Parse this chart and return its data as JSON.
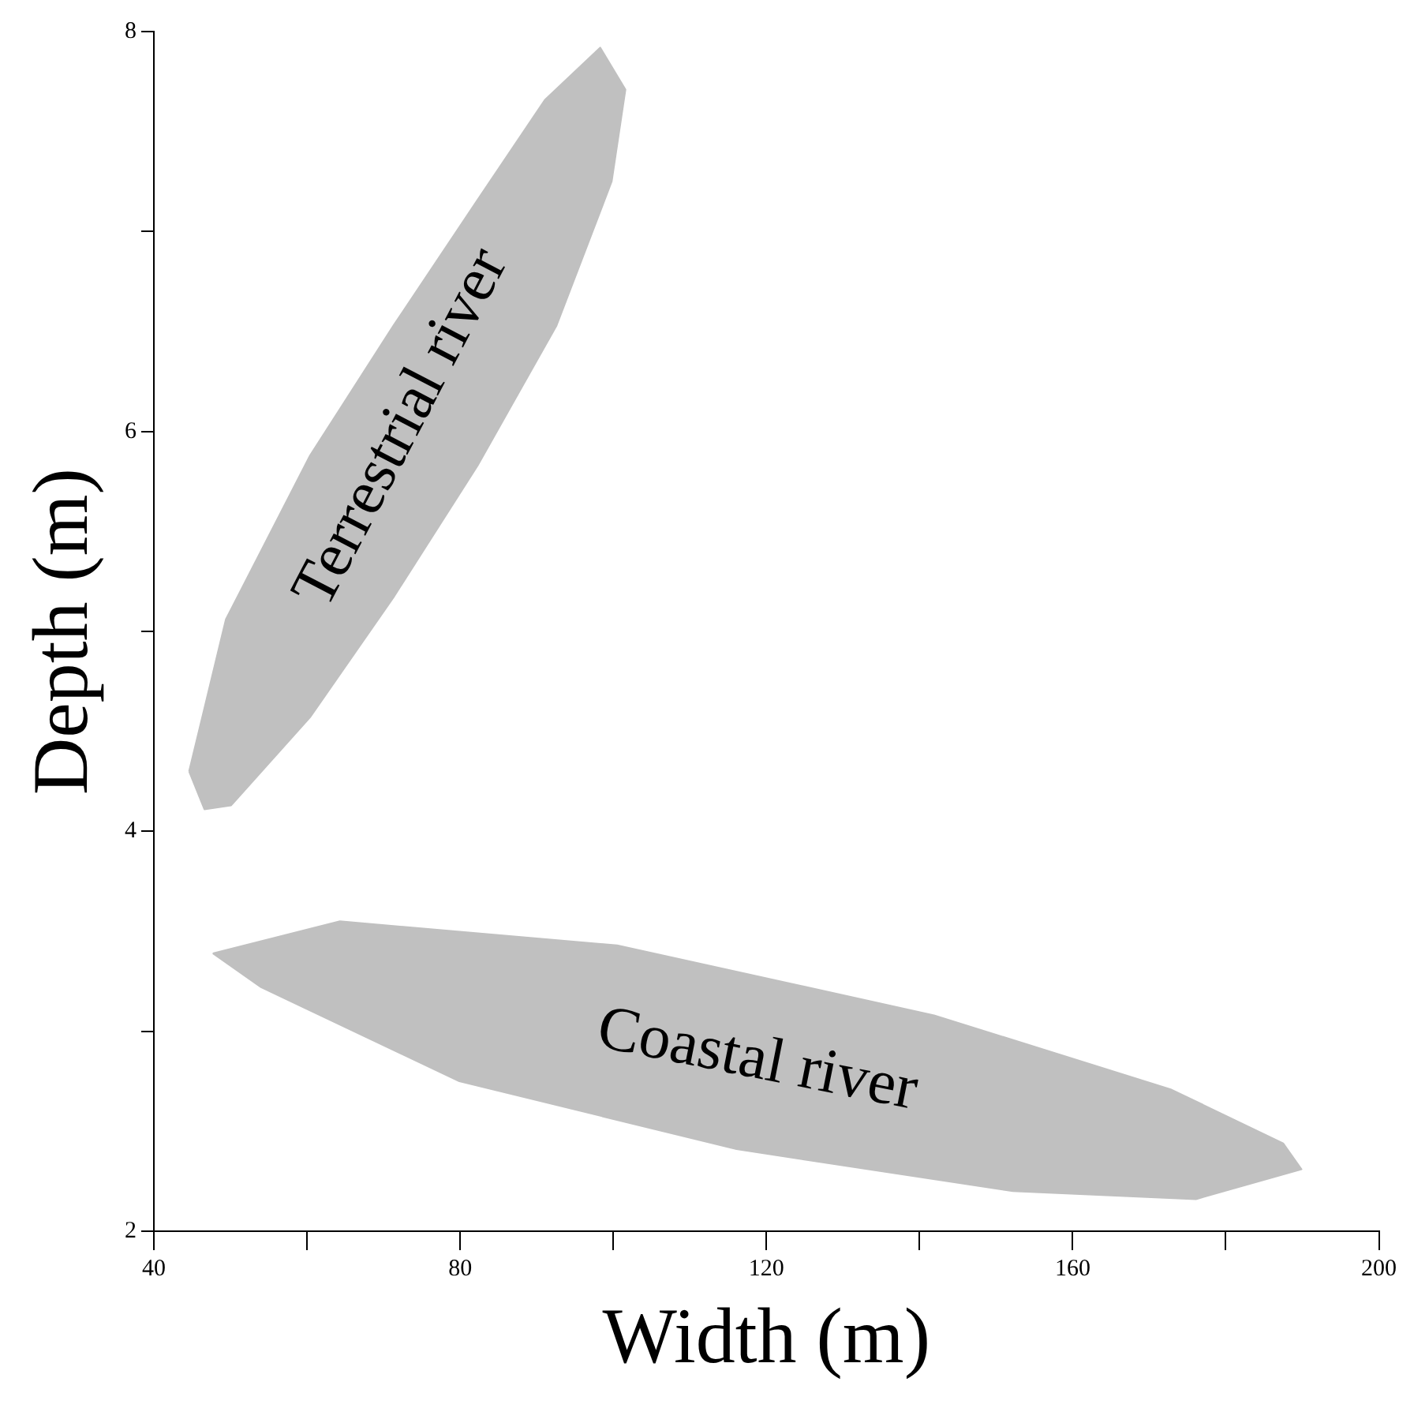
{
  "chart_data": {
    "type": "area",
    "xlabel": "Width (m)",
    "ylabel": "Depth (m)",
    "xlim": [
      40,
      200
    ],
    "ylim": [
      2,
      8
    ],
    "xticks": [
      40,
      {
        "value": 60,
        "label": null
      },
      80,
      {
        "value": 100,
        "label": null
      },
      120,
      {
        "value": 140,
        "label": null
      },
      160,
      {
        "value": 180,
        "label": null
      },
      200
    ],
    "yticks": [
      2,
      {
        "value": 3,
        "label": null
      },
      4,
      {
        "value": 5,
        "label": null
      },
      6,
      {
        "value": 7,
        "label": null
      },
      8
    ],
    "grid": false,
    "legend": false,
    "series": [
      {
        "name": "Terrestrial river",
        "color": "#c0c0c0",
        "x": [
          44.6,
          49.4,
          60.4,
          71.3,
          82.3,
          91.1,
          98.3,
          101.6,
          99.8,
          92.6,
          82.3,
          71.3,
          60.4,
          50.1,
          46.6,
          44.6
        ],
        "values": [
          4.3,
          5.06,
          5.88,
          6.53,
          7.16,
          7.66,
          7.92,
          7.71,
          7.25,
          6.53,
          5.83,
          5.17,
          4.57,
          4.13,
          4.11,
          4.3
        ]
      },
      {
        "name": "Coastal river",
        "color": "#c0c0c0",
        "x": [
          47.7,
          64.3,
          100.5,
          141.9,
          172.8,
          187.5,
          189.9,
          176.1,
          152.2,
          116.1,
          79.9,
          54.0,
          47.7
        ],
        "values": [
          3.39,
          3.55,
          3.43,
          3.08,
          2.71,
          2.44,
          2.31,
          2.16,
          2.2,
          2.41,
          2.75,
          3.22,
          3.39
        ]
      }
    ]
  }
}
